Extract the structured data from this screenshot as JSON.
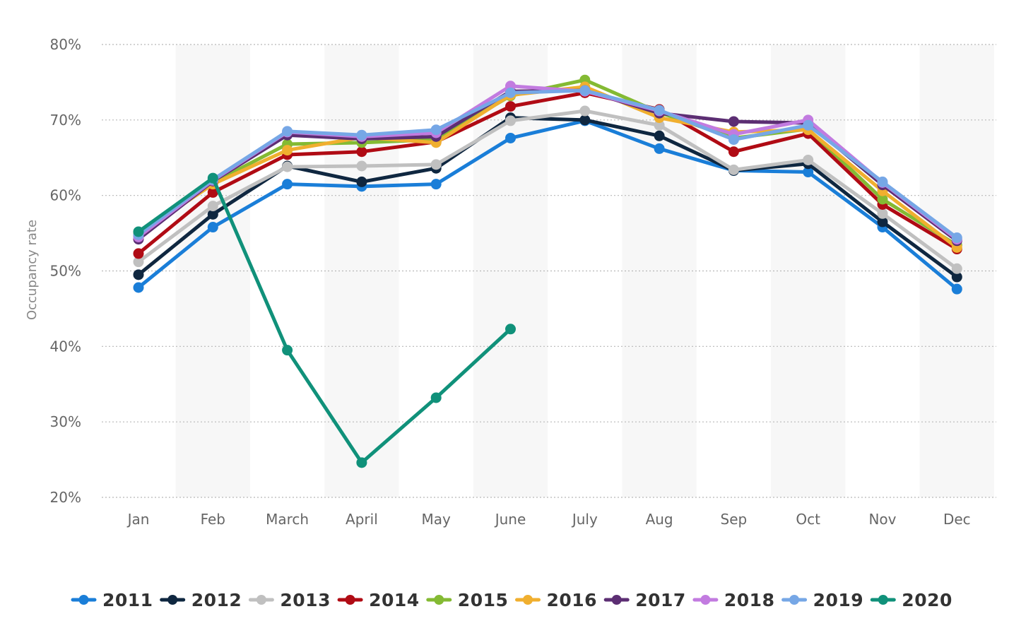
{
  "chart_data": {
    "type": "line",
    "ylabel": "Occupancy rate",
    "categories": [
      "Jan",
      "Feb",
      "March",
      "April",
      "May",
      "June",
      "July",
      "Aug",
      "Sep",
      "Oct",
      "Nov",
      "Dec"
    ],
    "y_ticks": [
      "20%",
      "30%",
      "40%",
      "50%",
      "60%",
      "70%",
      "80%"
    ],
    "ylim": [
      20,
      80
    ],
    "grid": "horizontal dotted",
    "legend_position": "bottom",
    "series": [
      {
        "name": "2011",
        "color": "#1a7ed8",
        "values": [
          47.8,
          55.8,
          61.5,
          61.2,
          61.5,
          67.6,
          69.9,
          66.2,
          63.3,
          63.1,
          55.8,
          47.6
        ]
      },
      {
        "name": "2012",
        "color": "#0f2740",
        "values": [
          49.5,
          57.5,
          63.9,
          61.8,
          63.6,
          70.3,
          70.0,
          67.9,
          63.3,
          64.2,
          56.5,
          49.2
        ]
      },
      {
        "name": "2013",
        "color": "#c0c0c0",
        "values": [
          51.2,
          58.6,
          63.8,
          63.9,
          64.1,
          69.9,
          71.2,
          69.3,
          63.4,
          64.7,
          57.6,
          50.3
        ]
      },
      {
        "name": "2014",
        "color": "#b00b14",
        "values": [
          52.3,
          60.4,
          65.4,
          65.8,
          67.1,
          71.8,
          73.6,
          71.4,
          65.8,
          68.2,
          58.8,
          52.9
        ]
      },
      {
        "name": "2015",
        "color": "#84ba33",
        "values": [
          54.7,
          61.7,
          66.8,
          67.0,
          67.4,
          73.2,
          75.3,
          71.0,
          67.6,
          68.8,
          59.5,
          53.4
        ]
      },
      {
        "name": "2016",
        "color": "#f0af2f",
        "values": [
          54.9,
          61.5,
          66.0,
          67.7,
          67.0,
          73.3,
          74.4,
          70.3,
          68.4,
          68.7,
          60.6,
          53.1
        ]
      },
      {
        "name": "2017",
        "color": "#5c2e73",
        "values": [
          54.2,
          61.9,
          68.0,
          67.5,
          67.8,
          73.8,
          73.9,
          70.9,
          69.8,
          69.6,
          61.4,
          54.0
        ]
      },
      {
        "name": "2018",
        "color": "#c27be0",
        "values": [
          54.5,
          62.0,
          68.4,
          67.8,
          68.3,
          74.5,
          73.8,
          71.2,
          68.1,
          70.0,
          61.7,
          54.2
        ]
      },
      {
        "name": "2019",
        "color": "#76a7e6",
        "values": [
          54.8,
          62.1,
          68.5,
          68.0,
          68.7,
          73.6,
          73.9,
          71.3,
          67.4,
          69.3,
          61.8,
          54.4
        ]
      },
      {
        "name": "2020",
        "color": "#10917a",
        "values": [
          55.2,
          62.3,
          39.5,
          24.6,
          33.2,
          42.3,
          null,
          null,
          null,
          null,
          null,
          null
        ]
      }
    ]
  }
}
